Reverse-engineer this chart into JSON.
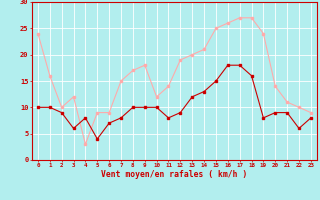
{
  "hours": [
    0,
    1,
    2,
    3,
    4,
    5,
    6,
    7,
    8,
    9,
    10,
    11,
    12,
    13,
    14,
    15,
    16,
    17,
    18,
    19,
    20,
    21,
    22,
    23
  ],
  "vent_moyen": [
    10,
    10,
    9,
    6,
    8,
    4,
    7,
    8,
    10,
    10,
    10,
    8,
    9,
    12,
    13,
    15,
    18,
    18,
    16,
    8,
    9,
    9,
    6,
    8
  ],
  "rafales": [
    24,
    16,
    10,
    12,
    3,
    9,
    9,
    15,
    17,
    18,
    12,
    14,
    19,
    20,
    21,
    25,
    26,
    27,
    27,
    24,
    14,
    11,
    10,
    9
  ],
  "xlabel": "Vent moyen/en rafales ( km/h )",
  "ylim": [
    0,
    30
  ],
  "yticks": [
    0,
    5,
    10,
    15,
    20,
    25,
    30
  ],
  "color_moyen": "#cc0000",
  "color_rafales": "#ffaaaa",
  "bg_color": "#b2eeee",
  "grid_color": "#aadddd",
  "xlabel_color": "#cc0000",
  "tick_color": "#cc0000"
}
